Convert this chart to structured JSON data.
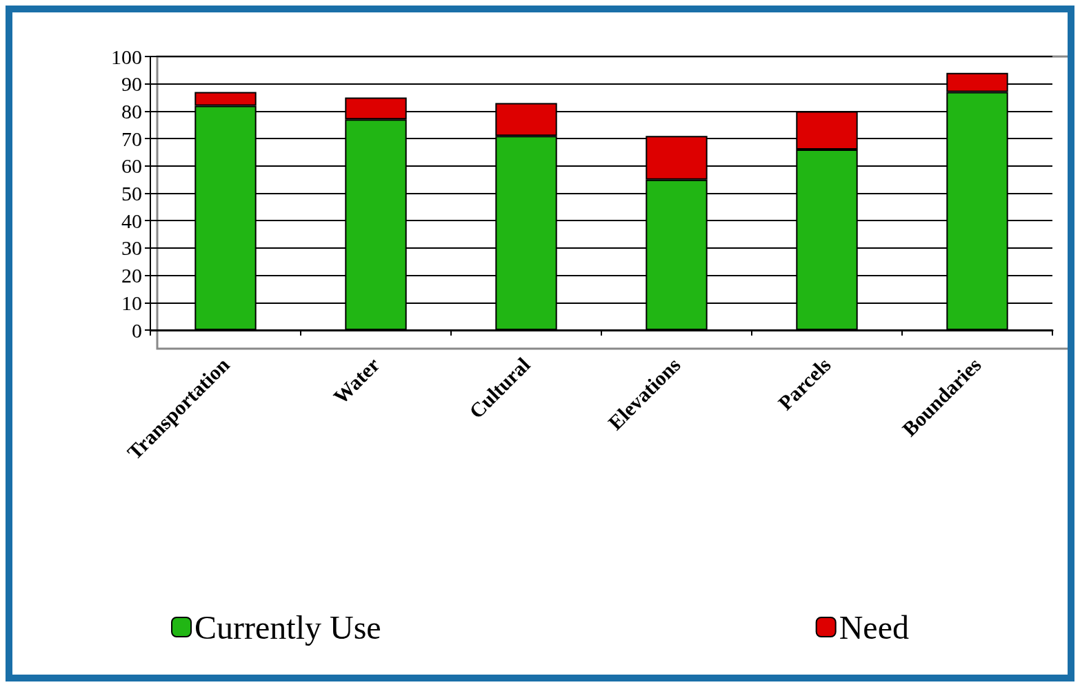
{
  "chart_data": {
    "type": "bar",
    "stacked": true,
    "categories": [
      "Transportation",
      "Water",
      "Cultural",
      "Elevations",
      "Parcels",
      "Boundaries"
    ],
    "series": [
      {
        "name": "Currently Use",
        "color": "#21b614",
        "values": [
          82,
          77,
          71,
          55,
          66,
          87
        ]
      },
      {
        "name": "Need",
        "color": "#dd0000",
        "values": [
          5,
          8,
          12,
          16,
          14,
          7
        ]
      }
    ],
    "ylim": [
      0,
      100
    ],
    "yticks": [
      0,
      10,
      20,
      30,
      40,
      50,
      60,
      70,
      80,
      90,
      100
    ],
    "grid": "y",
    "legend": "bottom"
  }
}
